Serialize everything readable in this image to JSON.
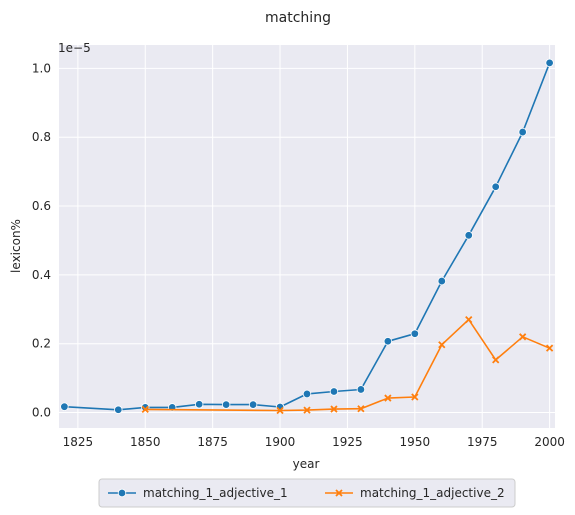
{
  "chart_data": {
    "type": "line",
    "title": "matching",
    "xlabel": "year",
    "ylabel": "lexicon%",
    "y_scale_label": "1e−5",
    "xlim": [
      1818,
      2002
    ],
    "ylim": [
      -0.045,
      1.068
    ],
    "x_ticks": [
      1825,
      1850,
      1875,
      1900,
      1925,
      1950,
      1975,
      2000
    ],
    "y_ticks": [
      0.0,
      0.2,
      0.4,
      0.6,
      0.8,
      1.0
    ],
    "x_tick_labels": [
      "1825",
      "1850",
      "1875",
      "1900",
      "1925",
      "1950",
      "1975",
      "2000"
    ],
    "y_tick_labels": [
      "0.0",
      "0.2",
      "0.4",
      "0.6",
      "0.8",
      "1.0"
    ],
    "grid": true,
    "legend_position": "bottom-center",
    "series": [
      {
        "name": "matching_1_adjective_1",
        "color": "#1f77b4",
        "marker": "circle",
        "x": [
          1820,
          1840,
          1850,
          1860,
          1870,
          1880,
          1890,
          1900,
          1910,
          1920,
          1930,
          1940,
          1950,
          1960,
          1970,
          1980,
          1990,
          2000
        ],
        "y": [
          0.017,
          0.008,
          0.015,
          0.015,
          0.024,
          0.023,
          0.023,
          0.016,
          0.054,
          0.061,
          0.067,
          0.207,
          0.229,
          0.382,
          0.515,
          0.656,
          0.815,
          1.016
        ]
      },
      {
        "name": "matching_1_adjective_2",
        "color": "#ff7f0e",
        "marker": "x",
        "x": [
          1850,
          1900,
          1910,
          1920,
          1930,
          1940,
          1950,
          1960,
          1970,
          1980,
          1990,
          2000
        ],
        "y": [
          0.009,
          0.006,
          0.007,
          0.01,
          0.011,
          0.042,
          0.045,
          0.197,
          0.27,
          0.153,
          0.22,
          0.187
        ]
      }
    ]
  }
}
